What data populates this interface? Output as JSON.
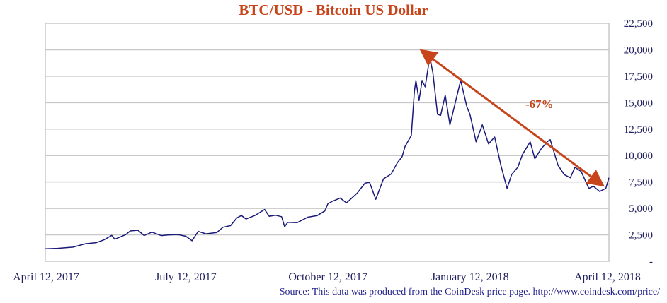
{
  "chart_data": {
    "type": "line",
    "title": "BTC/USD - Bitcoin US Dollar",
    "xlabel": "",
    "ylabel": "",
    "x_range": [
      "2017-04-12",
      "2018-04-12"
    ],
    "ylim": [
      0,
      22500
    ],
    "y_ticks": [
      "-",
      "2,500",
      "5,000",
      "7,500",
      "10,000",
      "12,500",
      "15,000",
      "17,500",
      "20,000",
      "22,500"
    ],
    "y_tick_values": [
      0,
      2500,
      5000,
      7500,
      10000,
      12500,
      15000,
      17500,
      20000,
      22500
    ],
    "x_ticks": [
      "April 12, 2017",
      "July 12, 2017",
      "October 12, 2017",
      "January 12, 2018",
      "April 12, 2018"
    ],
    "x_tick_dates": [
      "2017-04-12",
      "2017-07-12",
      "2017-10-12",
      "2018-01-12",
      "2018-04-12"
    ],
    "grid": "horizontal",
    "line_color": "#1a1a7a",
    "series": [
      {
        "points": [
          [
            "2017-04-12",
            1190
          ],
          [
            "2017-04-20",
            1230
          ],
          [
            "2017-04-30",
            1340
          ],
          [
            "2017-05-08",
            1660
          ],
          [
            "2017-05-15",
            1760
          ],
          [
            "2017-05-20",
            2030
          ],
          [
            "2017-05-25",
            2450
          ],
          [
            "2017-05-27",
            2090
          ],
          [
            "2017-06-03",
            2520
          ],
          [
            "2017-06-06",
            2870
          ],
          [
            "2017-06-11",
            2940
          ],
          [
            "2017-06-15",
            2440
          ],
          [
            "2017-06-20",
            2760
          ],
          [
            "2017-06-26",
            2430
          ],
          [
            "2017-07-01",
            2500
          ],
          [
            "2017-07-07",
            2520
          ],
          [
            "2017-07-12",
            2370
          ],
          [
            "2017-07-16",
            1940
          ],
          [
            "2017-07-20",
            2830
          ],
          [
            "2017-07-25",
            2600
          ],
          [
            "2017-08-01",
            2720
          ],
          [
            "2017-08-05",
            3220
          ],
          [
            "2017-08-10",
            3380
          ],
          [
            "2017-08-14",
            4100
          ],
          [
            "2017-08-17",
            4330
          ],
          [
            "2017-08-20",
            4000
          ],
          [
            "2017-08-26",
            4350
          ],
          [
            "2017-09-01",
            4900
          ],
          [
            "2017-09-04",
            4260
          ],
          [
            "2017-09-08",
            4360
          ],
          [
            "2017-09-12",
            4220
          ],
          [
            "2017-09-14",
            3270
          ],
          [
            "2017-09-16",
            3690
          ],
          [
            "2017-09-22",
            3650
          ],
          [
            "2017-09-29",
            4170
          ],
          [
            "2017-10-05",
            4320
          ],
          [
            "2017-10-10",
            4760
          ],
          [
            "2017-10-12",
            5440
          ],
          [
            "2017-10-15",
            5680
          ],
          [
            "2017-10-20",
            5980
          ],
          [
            "2017-10-24",
            5520
          ],
          [
            "2017-10-31",
            6450
          ],
          [
            "2017-11-05",
            7390
          ],
          [
            "2017-11-08",
            7460
          ],
          [
            "2017-11-12",
            5860
          ],
          [
            "2017-11-17",
            7800
          ],
          [
            "2017-11-22",
            8260
          ],
          [
            "2017-11-26",
            9330
          ],
          [
            "2017-11-29",
            9880
          ],
          [
            "2017-12-01",
            10860
          ],
          [
            "2017-12-05",
            11900
          ],
          [
            "2017-12-07",
            16050
          ],
          [
            "2017-12-08",
            17100
          ],
          [
            "2017-12-10",
            15200
          ],
          [
            "2017-12-12",
            17100
          ],
          [
            "2017-12-14",
            16500
          ],
          [
            "2017-12-17",
            19340
          ],
          [
            "2017-12-19",
            17800
          ],
          [
            "2017-12-22",
            13900
          ],
          [
            "2017-12-24",
            13800
          ],
          [
            "2017-12-27",
            15700
          ],
          [
            "2017-12-30",
            12900
          ],
          [
            "2018-01-02",
            14700
          ],
          [
            "2018-01-06",
            17100
          ],
          [
            "2018-01-10",
            14600
          ],
          [
            "2018-01-12",
            13900
          ],
          [
            "2018-01-16",
            11300
          ],
          [
            "2018-01-20",
            12900
          ],
          [
            "2018-01-24",
            11100
          ],
          [
            "2018-01-28",
            11750
          ],
          [
            "2018-02-01",
            9100
          ],
          [
            "2018-02-05",
            6900
          ],
          [
            "2018-02-08",
            8200
          ],
          [
            "2018-02-12",
            8900
          ],
          [
            "2018-02-15",
            10100
          ],
          [
            "2018-02-20",
            11300
          ],
          [
            "2018-02-23",
            9700
          ],
          [
            "2018-02-27",
            10600
          ],
          [
            "2018-03-03",
            11300
          ],
          [
            "2018-03-05",
            11500
          ],
          [
            "2018-03-10",
            9100
          ],
          [
            "2018-03-14",
            8200
          ],
          [
            "2018-03-18",
            7900
          ],
          [
            "2018-03-21",
            8900
          ],
          [
            "2018-03-25",
            8500
          ],
          [
            "2018-03-30",
            6900
          ],
          [
            "2018-04-02",
            7100
          ],
          [
            "2018-04-06",
            6600
          ],
          [
            "2018-04-10",
            6900
          ],
          [
            "2018-04-12",
            7900
          ]
        ]
      }
    ],
    "annotation": {
      "text": "-67%",
      "color": "#c8441b",
      "arrow_from": [
        "2017-12-17",
        19340
      ],
      "arrow_to": [
        "2018-04-07",
        7300
      ]
    },
    "source": "Source:  This data was produced from the CoinDesk price page. http://www.coindesk.com/price/"
  }
}
